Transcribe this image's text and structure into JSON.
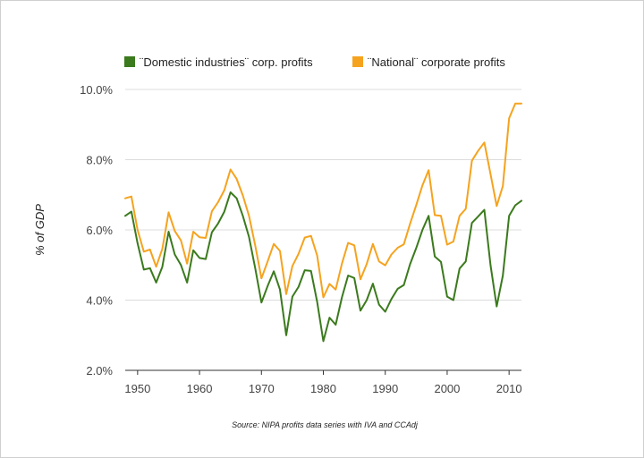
{
  "chart_data": {
    "type": "line",
    "title": "",
    "xlabel": "",
    "ylabel": "% of GDP",
    "source": "Source: NIPA profits data series with IVA and CCAdj",
    "xlim": [
      1948,
      2012
    ],
    "ylim": [
      2.0,
      10.0
    ],
    "x_ticks": [
      1950,
      1960,
      1970,
      1980,
      1990,
      2000,
      2010
    ],
    "x_tick_labels": [
      "1950",
      "1960",
      "1970",
      "1980",
      "1990",
      "2000",
      "2010"
    ],
    "y_ticks": [
      2.0,
      4.0,
      6.0,
      8.0,
      10.0
    ],
    "y_tick_labels": [
      "2.0%",
      "4.0%",
      "6.0%",
      "8.0%",
      "10.0%"
    ],
    "legend_position": "top",
    "x": [
      1948,
      1949,
      1950,
      1951,
      1952,
      1953,
      1954,
      1955,
      1956,
      1957,
      1958,
      1959,
      1960,
      1961,
      1962,
      1963,
      1964,
      1965,
      1966,
      1967,
      1968,
      1969,
      1970,
      1971,
      1972,
      1973,
      1974,
      1975,
      1976,
      1977,
      1978,
      1979,
      1980,
      1981,
      1982,
      1983,
      1984,
      1985,
      1986,
      1987,
      1988,
      1989,
      1990,
      1991,
      1992,
      1993,
      1994,
      1995,
      1996,
      1997,
      1998,
      1999,
      2000,
      2001,
      2002,
      2003,
      2004,
      2005,
      2006,
      2007,
      2008,
      2009,
      2010,
      2011,
      2012
    ],
    "series": [
      {
        "name": "¨Domestic industries¨ corp. profits",
        "color": "#3b7a1d",
        "values": [
          6.4,
          6.52,
          5.62,
          4.87,
          4.91,
          4.5,
          4.95,
          5.95,
          5.3,
          5.0,
          4.5,
          5.42,
          5.2,
          5.17,
          5.93,
          6.18,
          6.52,
          7.07,
          6.9,
          6.4,
          5.8,
          4.9,
          3.93,
          4.4,
          4.82,
          4.3,
          3.0,
          4.1,
          4.38,
          4.85,
          4.83,
          3.95,
          2.83,
          3.5,
          3.3,
          4.08,
          4.7,
          4.63,
          3.7,
          4.0,
          4.47,
          3.87,
          3.67,
          4.03,
          4.32,
          4.43,
          5.02,
          5.48,
          6.0,
          6.4,
          5.24,
          5.09,
          4.1,
          4.0,
          4.9,
          5.1,
          6.2,
          6.38,
          6.57,
          5.0,
          3.82,
          4.7,
          6.4,
          6.7,
          6.83
        ]
      },
      {
        "name": "¨National¨ corporate profits",
        "color": "#f5a31f",
        "values": [
          6.9,
          6.95,
          6.0,
          5.38,
          5.44,
          4.95,
          5.46,
          6.5,
          5.97,
          5.7,
          5.04,
          5.95,
          5.79,
          5.77,
          6.53,
          6.79,
          7.13,
          7.72,
          7.45,
          6.98,
          6.4,
          5.55,
          4.62,
          5.1,
          5.6,
          5.4,
          4.17,
          4.97,
          5.32,
          5.78,
          5.83,
          5.27,
          4.08,
          4.46,
          4.3,
          5.04,
          5.63,
          5.56,
          4.59,
          5.03,
          5.6,
          5.1,
          4.99,
          5.3,
          5.49,
          5.59,
          6.17,
          6.7,
          7.27,
          7.7,
          6.42,
          6.4,
          5.58,
          5.67,
          6.4,
          6.6,
          7.97,
          8.25,
          8.49,
          7.59,
          6.68,
          7.25,
          9.18,
          9.6,
          9.6
        ]
      }
    ]
  }
}
